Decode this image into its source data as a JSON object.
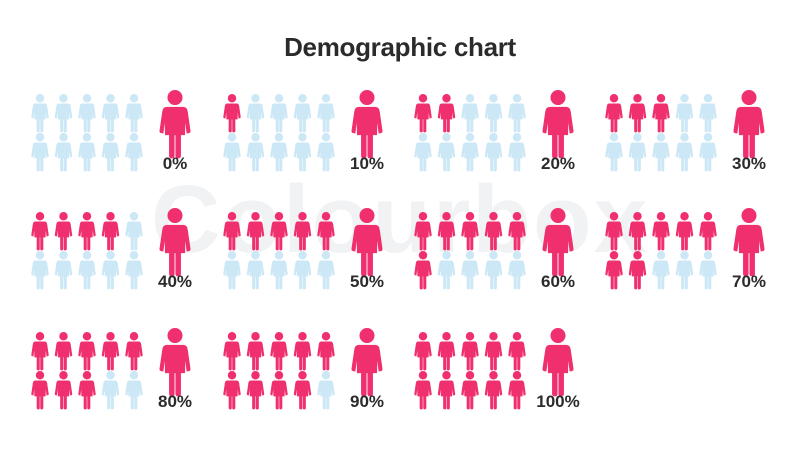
{
  "title": "Demographic chart",
  "watermark": "Colourbox",
  "colors": {
    "filled": "#f0306e",
    "empty": "#cce7f5",
    "text": "#2b2b2b"
  },
  "icon": "woman-icon",
  "chart_data": {
    "type": "pictograph",
    "title": "Demographic chart",
    "icons_per_panel": 10,
    "unit": "%",
    "values": [
      0,
      10,
      20,
      30,
      40,
      50,
      60,
      70,
      80,
      90,
      100
    ],
    "labels": [
      "0%",
      "10%",
      "20%",
      "30%",
      "40%",
      "50%",
      "60%",
      "70%",
      "80%",
      "90%",
      "100%"
    ]
  }
}
